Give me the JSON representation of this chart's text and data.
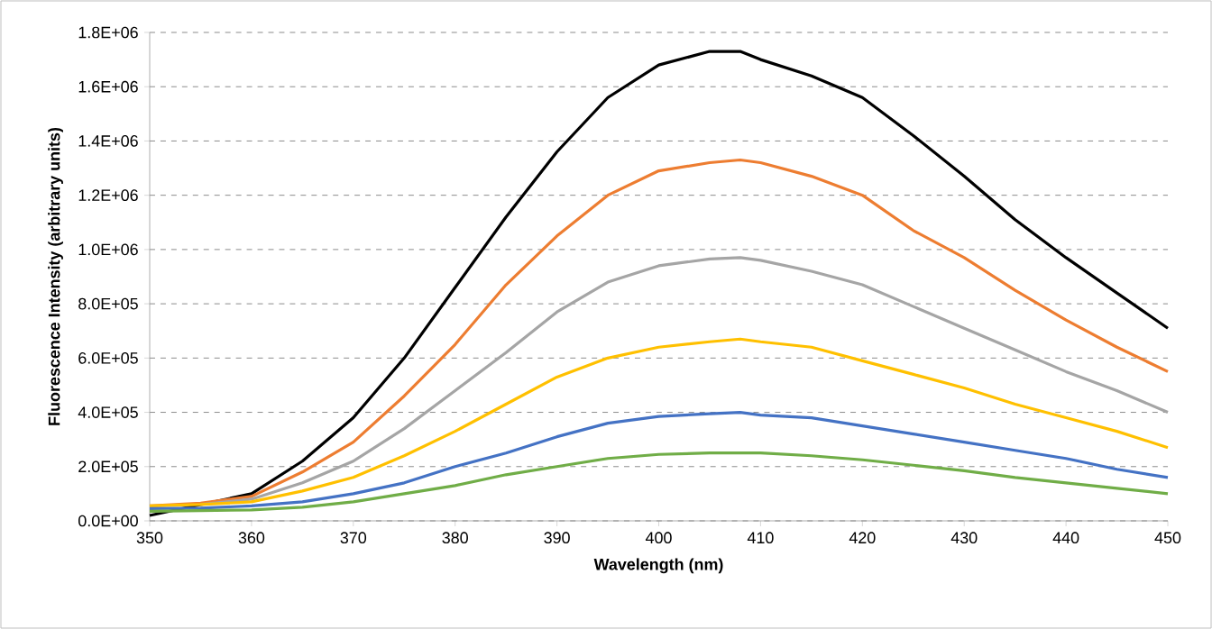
{
  "chart_data": {
    "type": "line",
    "xlabel": "Wavelength (nm)",
    "ylabel": "Fluorescence Intensity (arbitrary units)",
    "x": [
      350,
      355,
      360,
      365,
      370,
      375,
      380,
      385,
      390,
      395,
      400,
      405,
      408,
      410,
      415,
      420,
      425,
      430,
      435,
      440,
      445,
      450
    ],
    "series": [
      {
        "color": "#000000",
        "values": [
          20000,
          null,
          100000,
          220000,
          380000,
          600000,
          860000,
          1120000,
          1360000,
          1560000,
          1680000,
          1730000,
          1730000,
          1700000,
          1640000,
          1560000,
          1420000,
          1270000,
          1110000,
          970000,
          840000,
          710000
        ]
      },
      {
        "color": "#ed7d31",
        "values": [
          55000,
          65000,
          90000,
          180000,
          290000,
          460000,
          650000,
          870000,
          1050000,
          1200000,
          1290000,
          1320000,
          1330000,
          1320000,
          1270000,
          1200000,
          1070000,
          970000,
          850000,
          740000,
          640000,
          550000
        ]
      },
      {
        "color": "#a5a5a5",
        "values": [
          null,
          60000,
          80000,
          140000,
          220000,
          340000,
          480000,
          620000,
          770000,
          880000,
          940000,
          965000,
          970000,
          960000,
          920000,
          870000,
          790000,
          710000,
          630000,
          550000,
          480000,
          400000
        ]
      },
      {
        "color": "#ffc000",
        "values": [
          55000,
          60000,
          70000,
          110000,
          160000,
          240000,
          330000,
          430000,
          530000,
          600000,
          640000,
          660000,
          670000,
          660000,
          640000,
          590000,
          540000,
          490000,
          430000,
          380000,
          330000,
          270000
        ]
      },
      {
        "color": "#4472c4",
        "values": [
          45000,
          47000,
          55000,
          70000,
          100000,
          140000,
          200000,
          250000,
          310000,
          360000,
          385000,
          395000,
          400000,
          390000,
          380000,
          350000,
          320000,
          290000,
          260000,
          230000,
          190000,
          160000
        ]
      },
      {
        "color": "#70ad47",
        "values": [
          35000,
          38000,
          40000,
          50000,
          70000,
          100000,
          130000,
          170000,
          200000,
          230000,
          245000,
          250000,
          250000,
          250000,
          240000,
          225000,
          205000,
          185000,
          160000,
          140000,
          120000,
          100000
        ]
      }
    ],
    "xlim": [
      350,
      450
    ],
    "ylim": [
      0,
      1800000
    ],
    "xticks": [
      350,
      360,
      370,
      380,
      390,
      400,
      410,
      420,
      430,
      440,
      450
    ],
    "yticks": [
      {
        "value": 0,
        "label": "0.0E+00"
      },
      {
        "value": 200000,
        "label": "2.0E+05"
      },
      {
        "value": 400000,
        "label": "4.0E+05"
      },
      {
        "value": 600000,
        "label": "6.0E+05"
      },
      {
        "value": 800000,
        "label": "8.0E+05"
      },
      {
        "value": 1000000,
        "label": "1.0E+06"
      },
      {
        "value": 1200000,
        "label": "1.2E+06"
      },
      {
        "value": 1400000,
        "label": "1.4E+06"
      },
      {
        "value": 1600000,
        "label": "1.6E+06"
      },
      {
        "value": 1800000,
        "label": "1.8E+06"
      }
    ],
    "grid": "y",
    "legend": false,
    "marker": "none",
    "line_style": "solid"
  }
}
